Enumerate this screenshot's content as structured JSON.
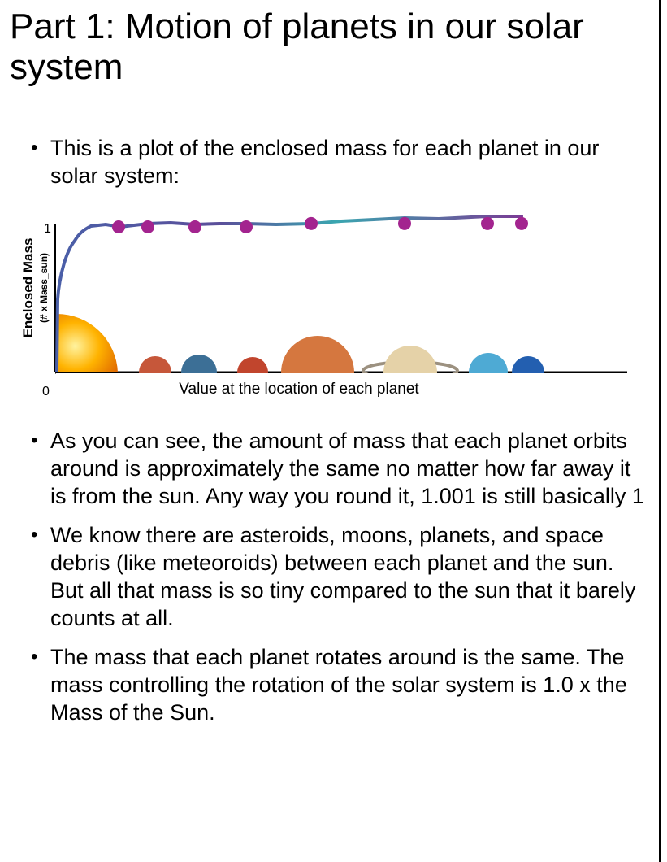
{
  "title": "Part 1: Motion of planets in our solar system",
  "intro_bullet": "This is a plot of the enclosed mass for each planet in our solar system:",
  "chart_data": {
    "type": "line",
    "ylabel": "Enclosed Mass",
    "ylabel_sub": "(# x Mass_sun)",
    "xlabel": "Value at the location of each planet",
    "y_ticks": [
      "1",
      "0"
    ],
    "ylim": [
      0,
      1
    ],
    "planet_points": [
      {
        "planet": "Mercury",
        "value": 1.0
      },
      {
        "planet": "Venus",
        "value": 1.0
      },
      {
        "planet": "Earth",
        "value": 1.0
      },
      {
        "planet": "Mars",
        "value": 1.0
      },
      {
        "planet": "Jupiter",
        "value": 1.001
      },
      {
        "planet": "Saturn",
        "value": 1.001
      },
      {
        "planet": "Uranus",
        "value": 1.001
      },
      {
        "planet": "Neptune",
        "value": 1.001
      }
    ],
    "colors": {
      "line": "#5b4f9a",
      "line_accent": "#3aa6b0",
      "markers": "#a3248f"
    }
  },
  "bullets": [
    "As you can see, the amount of mass that each planet orbits around is approximately the same no matter how far away it is from the sun. Any way you round it, 1.001 is still basically 1",
    "We know there are asteroids, moons, planets, and space debris (like meteoroids) between each planet and the sun. But all that mass is so tiny compared to the sun that it barely counts at all.",
    "The mass that each planet rotates around is the same. The mass controlling the rotation of the solar system is 1.0 x the Mass of the Sun."
  ]
}
